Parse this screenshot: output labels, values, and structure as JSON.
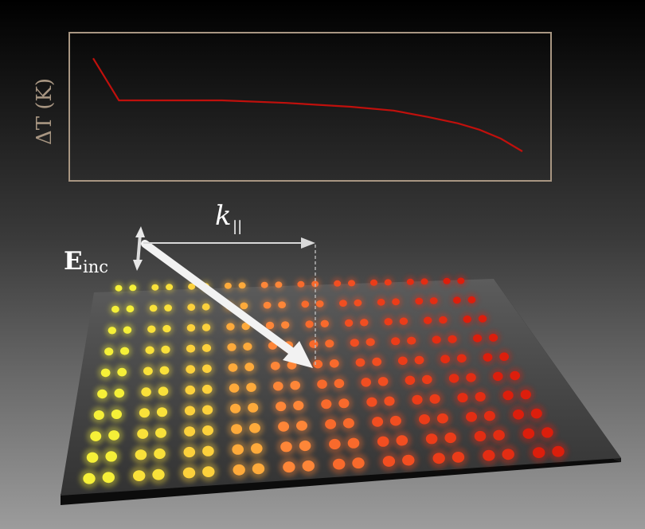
{
  "labels": {
    "ylabel": "ΔT (K)",
    "wavevector_main": "k",
    "wavevector_sub": "||",
    "field_main": "E",
    "field_sub": "inc"
  },
  "chart_data": {
    "type": "line",
    "title": "",
    "xlabel": "",
    "ylabel": "ΔT (K)",
    "x": [
      0.0,
      0.06,
      0.15,
      0.3,
      0.45,
      0.6,
      0.7,
      0.78,
      0.85,
      0.9,
      0.95,
      1.0
    ],
    "series": [
      {
        "values": [
          0.88,
          0.55,
          0.55,
          0.55,
          0.53,
          0.5,
          0.47,
          0.42,
          0.37,
          0.32,
          0.25,
          0.15
        ]
      }
    ],
    "ylim": [
      0,
      1
    ],
    "grid": false
  },
  "colors": {
    "frame": "#a89682",
    "curve": "#c0100c",
    "arrow": "#e8e8e8",
    "slab_top": "#3c3c3c",
    "slab_side": "#0c0c0c",
    "dot_yellow": "#f5f038",
    "dot_orange": "#ff8c3a",
    "dot_red": "#e0200c"
  },
  "array": {
    "columns": 10,
    "pillar_rows_per_column": 2
  }
}
